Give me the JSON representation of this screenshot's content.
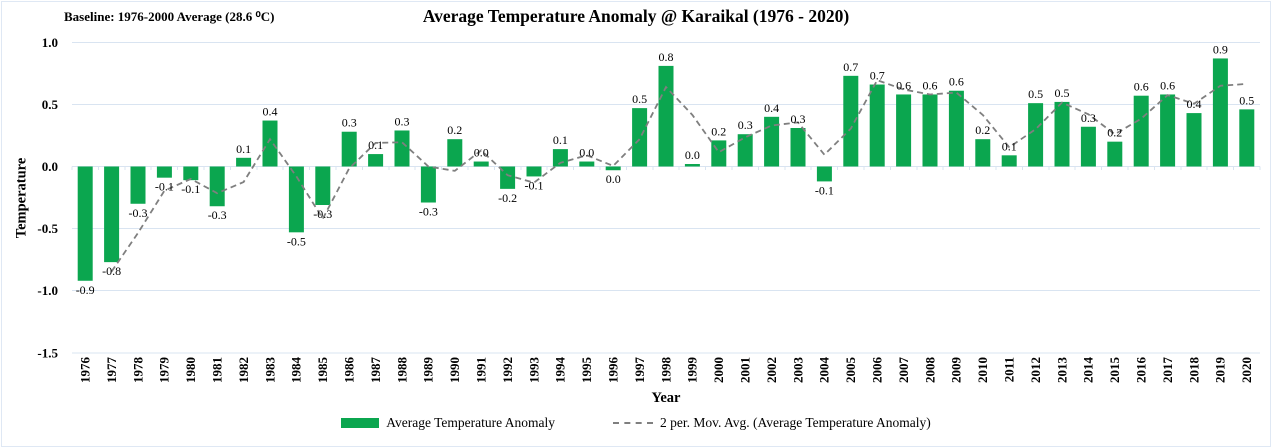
{
  "chart": {
    "title": "Average Temperature Anomaly @ Karaikal (1976 - 2020)",
    "baseline_note": "Baseline: 1976-2000 Average (28.6 ⁰C)",
    "y_axis_label": "Temperature",
    "x_axis_label": "Year",
    "legend": [
      {
        "label": "Average Temperature Anomaly",
        "type": "bar",
        "color": "#0ba64f"
      },
      {
        "label": "2 per. Mov. Avg. (Average Temperature Anomaly)",
        "type": "dashed-line",
        "color": "#7f7f7f"
      }
    ]
  },
  "chart_data": {
    "type": "bar",
    "title": "Average Temperature Anomaly @ Karaikal (1976 - 2020)",
    "xlabel": "Year",
    "ylabel": "Temperature",
    "ylim": [
      -1.5,
      1.0
    ],
    "y_ticks": [
      1.0,
      0.5,
      0.0,
      -0.5,
      -1.0,
      -1.5
    ],
    "y_tick_labels": [
      "1.0",
      "0.5",
      "0.0",
      "-0.5",
      "-1.0",
      "-1.5"
    ],
    "grid": true,
    "legend_position": "bottom",
    "grid_color": "#d9e4f1",
    "categories": [
      "1976",
      "1977",
      "1978",
      "1979",
      "1980",
      "1981",
      "1982",
      "1983",
      "1984",
      "1985",
      "1986",
      "1987",
      "1988",
      "1989",
      "1990",
      "1991",
      "1992",
      "1993",
      "1994",
      "1995",
      "1996",
      "1997",
      "1998",
      "1999",
      "2000",
      "2001",
      "2002",
      "2003",
      "2004",
      "2005",
      "2006",
      "2007",
      "2008",
      "2009",
      "2010",
      "2011",
      "2012",
      "2013",
      "2014",
      "2015",
      "2016",
      "2017",
      "2018",
      "2019",
      "2020"
    ],
    "series": [
      {
        "name": "Average Temperature Anomaly",
        "type": "bar",
        "color": "#0ba64f",
        "values": [
          -0.92,
          -0.77,
          -0.3,
          -0.09,
          -0.11,
          -0.32,
          0.07,
          0.37,
          -0.53,
          -0.31,
          0.28,
          0.1,
          0.29,
          -0.29,
          0.22,
          0.04,
          -0.18,
          -0.08,
          0.14,
          0.04,
          -0.03,
          0.47,
          0.81,
          0.02,
          0.21,
          0.26,
          0.4,
          0.31,
          -0.12,
          0.73,
          0.66,
          0.58,
          0.58,
          0.61,
          0.22,
          0.09,
          0.51,
          0.52,
          0.32,
          0.2,
          0.57,
          0.58,
          0.43,
          0.87,
          0.46
        ],
        "value_labels": [
          "-0.9",
          "-0.8",
          "-0.3",
          "-0.1",
          "-0.1",
          "-0.3",
          "0.1",
          "0.4",
          "-0.5",
          "-0.3",
          "0.3",
          "0.1",
          "0.3",
          "-0.3",
          "0.2",
          "0.0",
          "-0.2",
          "-0.1",
          "0.1",
          "0.0",
          "0.0",
          "0.5",
          "0.8",
          "0.0",
          "0.2",
          "0.3",
          "0.4",
          "0.3",
          "-0.1",
          "0.7",
          "0.7",
          "0.6",
          "0.6",
          "0.6",
          "0.2",
          "0.1",
          "0.5",
          "0.5",
          "0.3",
          "0.2",
          "0.6",
          "0.6",
          "0.4",
          "0.9",
          "0.5"
        ]
      },
      {
        "name": "2 per. Mov. Avg. (Average Temperature Anomaly)",
        "type": "line",
        "style": "dashed",
        "color": "#7f7f7f",
        "derivation": "2-period moving average of bar values",
        "values": [
          null,
          -0.845,
          -0.535,
          -0.195,
          -0.1,
          -0.215,
          -0.125,
          0.22,
          -0.08,
          -0.42,
          -0.015,
          0.19,
          0.195,
          0.0,
          -0.035,
          0.13,
          -0.07,
          -0.13,
          0.03,
          0.09,
          0.005,
          0.22,
          0.64,
          0.415,
          0.115,
          0.235,
          0.33,
          0.355,
          0.095,
          0.305,
          0.695,
          0.62,
          0.58,
          0.595,
          0.415,
          0.155,
          0.3,
          0.515,
          0.42,
          0.26,
          0.385,
          0.575,
          0.505,
          0.65,
          0.665
        ]
      }
    ]
  }
}
